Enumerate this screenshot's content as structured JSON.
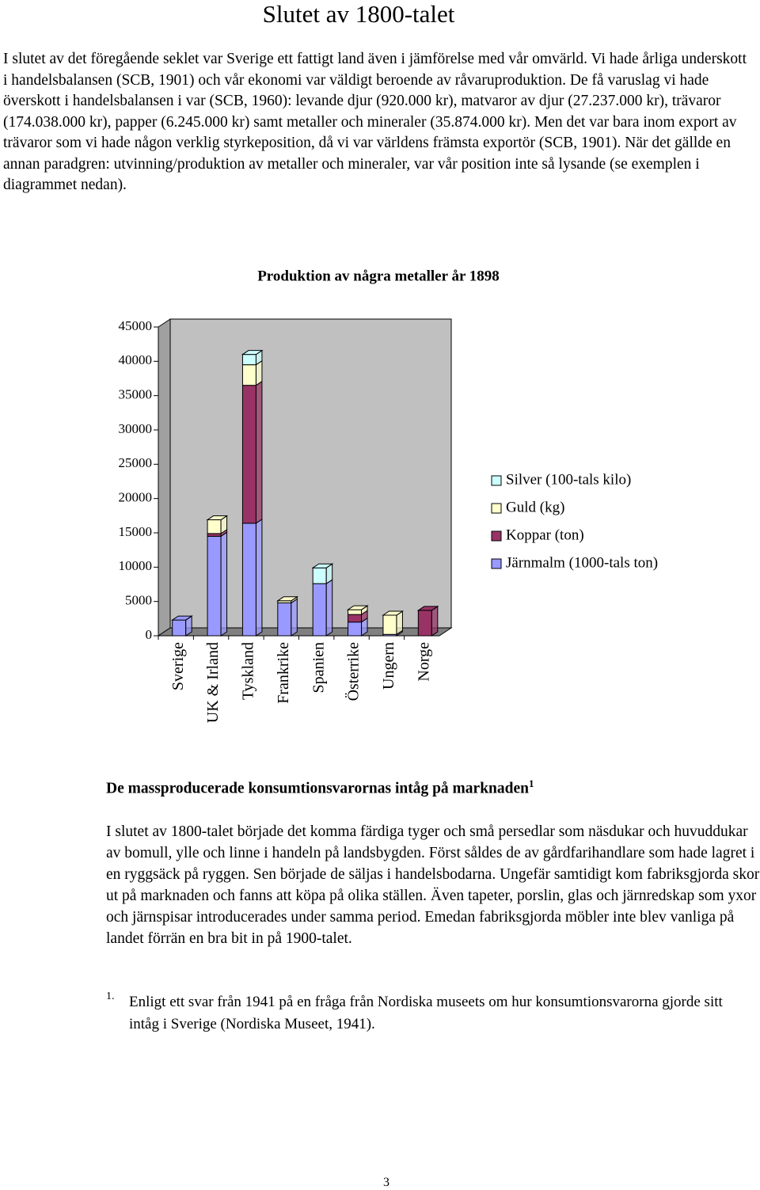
{
  "header": {
    "title": "Slutet av 1800-talet"
  },
  "section1": {
    "paragraph": "I slutet av det föregående seklet var Sverige ett fattigt land även i jämförelse med vår omvärld. Vi hade årliga underskott i handelsbalansen (SCB, 1901) och vår ekonomi var väldigt beroende av råvaruproduktion. De få varuslag vi hade överskott i handelsbalansen i var (SCB, 1960): levande djur (920.000 kr), matvaror av djur (27.237.000 kr), trävaror (174.038.000 kr), papper (6.245.000 kr) samt metaller och mineraler (35.874.000 kr). Men det var bara inom export av trävaror som vi hade någon verklig styrkeposition, då vi var världens främsta exportör (SCB, 1901). När det gällde en annan paradgren: utvinning/produktion av metaller och mineraler, var vår position inte så lysande (se exemplen i diagrammet nedan)."
  },
  "chart_data": {
    "type": "stacked-bar-3d",
    "title": "Produktion av några metaller år 1898",
    "categories": [
      "Sverige",
      "UK & Irland",
      "Tyskland",
      "Frankrike",
      "Spanien",
      "Österrike",
      "Ungern",
      "Norge"
    ],
    "series": [
      {
        "name": "Järnmalm (1000-tals ton)",
        "color": "#9999ff",
        "values": [
          2300,
          14500,
          16400,
          4800,
          7600,
          2000,
          200,
          0
        ]
      },
      {
        "name": "Koppar (ton)",
        "color": "#993366",
        "values": [
          0,
          400,
          20100,
          0,
          0,
          1100,
          0,
          3700
        ]
      },
      {
        "name": "Guld (kg)",
        "color": "#ffffcc",
        "values": [
          0,
          2000,
          3000,
          300,
          0,
          700,
          2800,
          0
        ]
      },
      {
        "name": "Silver (100-tals kilo)",
        "color": "#ccffff",
        "values": [
          0,
          0,
          1500,
          0,
          2300,
          0,
          0,
          0
        ]
      }
    ],
    "ylim": [
      0,
      45000
    ],
    "yticks": [
      0,
      5000,
      10000,
      15000,
      20000,
      25000,
      30000,
      35000,
      40000,
      45000
    ],
    "legend": "right"
  },
  "section2": {
    "heading": "De massproducerade konsumtionsvarornas intåg på marknaden",
    "heading_note": "1",
    "paragraph": "I slutet av 1800-talet började det komma färdiga tyger och små persedlar som näsdukar och huvuddukar av bomull, ylle och linne i handeln på landsbygden. Först såldes de av gårdfarihandlare som hade lagret i en ryggsäck på ryggen. Sen började de säljas i handelsbodarna. Ungefär samtidigt kom fabriksgjorda skor ut på marknaden och fanns att köpa på olika ställen. Även tapeter, porslin, glas och järnredskap som yxor och järnspisar introducerades under samma period. Emedan fabriksgjorda möbler inte blev vanliga på landet förrän en bra bit in på 1900-talet."
  },
  "footnote": {
    "marker": "1.",
    "text": "Enligt ett svar från 1941 på en fråga från Nordiska museets om hur konsumtionsvarorna gjorde sitt intåg i Sverige (Nordiska Museet, 1941)."
  },
  "footer": {
    "page_number": "3"
  }
}
